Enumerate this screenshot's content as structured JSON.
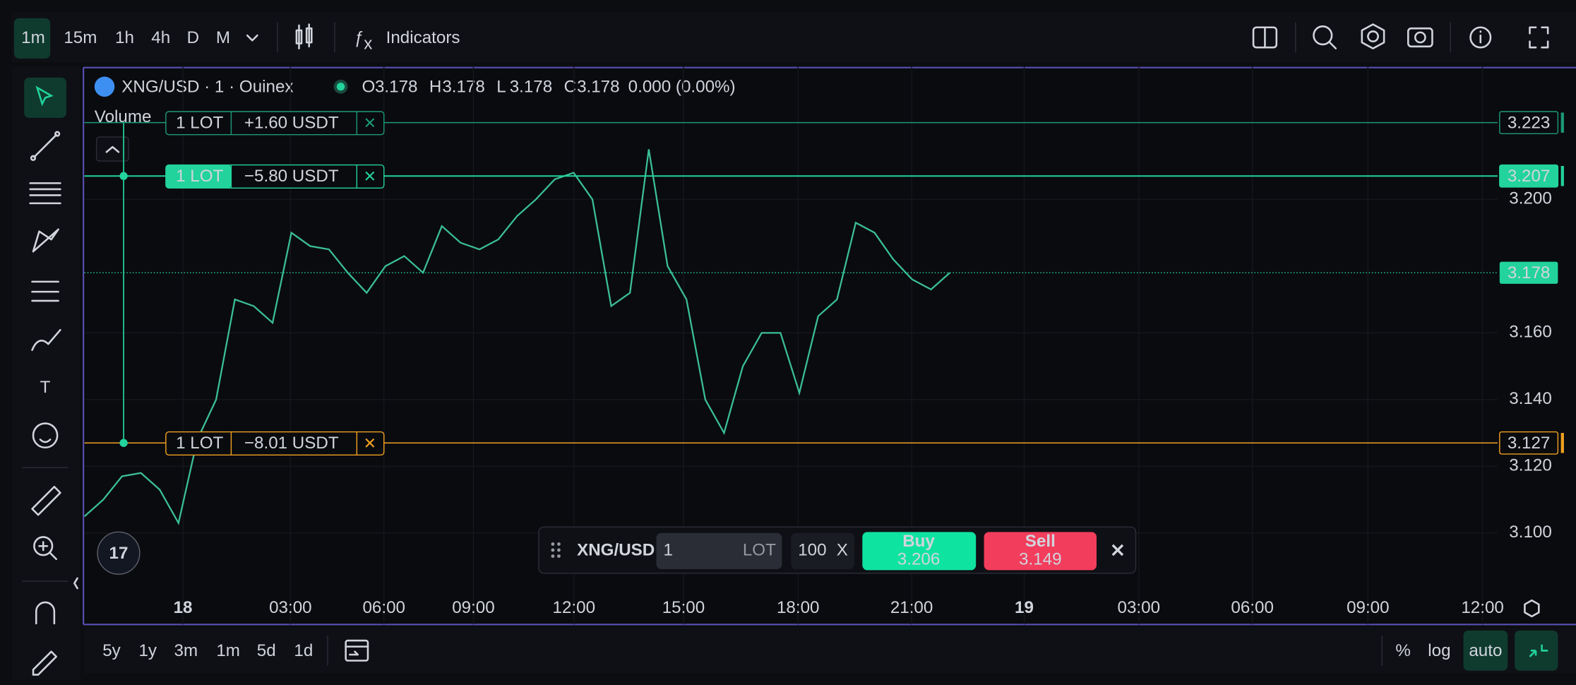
{
  "toolbar": {
    "intervals": [
      "1m",
      "15m",
      "1h",
      "4h",
      "D",
      "M"
    ],
    "indicators": "Indicators"
  },
  "legend": {
    "symbol": "XNG/USD · 1 · Ouinex",
    "ohlc": [
      {
        "label": "O",
        "value": "3.178"
      },
      {
        "label": "H",
        "value": "3.178"
      },
      {
        "label": "L",
        "value": "3.178"
      },
      {
        "label": "C",
        "value": "3.178"
      }
    ],
    "change": "0.000 (0.00%)",
    "volume": "Volume"
  },
  "chart": {
    "ylim": [
      3.0726,
      3.2398
    ],
    "yticks": [
      {
        "value": 3.1,
        "label": "3.100"
      },
      {
        "value": 3.12,
        "label": "3.120"
      },
      {
        "value": 3.14,
        "label": "3.140"
      },
      {
        "value": 3.16,
        "label": "3.160"
      },
      {
        "value": 3.2,
        "label": "3.200"
      }
    ],
    "time_axis": [
      "18",
      "03:00",
      "06:00",
      "09:00",
      "12:00",
      "15:00",
      "18:00",
      "21:00",
      "19",
      "03:00",
      "06:00",
      "09:00",
      "12:00"
    ],
    "price_line": {
      "color": "#3bbf94",
      "values": [
        3.105,
        3.11,
        3.117,
        3.118,
        3.113,
        3.103,
        3.128,
        3.14,
        3.17,
        3.168,
        3.163,
        3.19,
        3.186,
        3.185,
        3.178,
        3.172,
        3.18,
        3.183,
        3.178,
        3.192,
        3.187,
        3.185,
        3.188,
        3.195,
        3.2,
        3.206,
        3.208,
        3.2,
        3.168,
        3.172,
        3.215,
        3.18,
        3.17,
        3.14,
        3.13,
        3.15,
        3.16,
        3.16,
        3.142,
        3.165,
        3.17,
        3.193,
        3.19,
        3.182,
        3.176,
        3.173,
        3.178
      ]
    },
    "last_price": {
      "value": 3.178,
      "color": "#22d39b"
    },
    "orders": [
      {
        "lot": "1 LOT",
        "pnl": "+1.60 USDT",
        "price": 3.223,
        "color": "#1c9a78",
        "pnl_color": "#1c9a78",
        "active": false
      },
      {
        "lot": "1 LOT",
        "pnl": "−5.80 USDT",
        "price": 3.207,
        "color": "#22d39b",
        "pnl_color": "#f04a4a",
        "active": true
      },
      {
        "lot": "1 LOT",
        "pnl": "−8.01 USDT",
        "price": 3.127,
        "color": "#f0a020",
        "pnl_color": "#f0a020",
        "active": false
      }
    ]
  },
  "order_panel": {
    "symbol": "XNG/USD",
    "quantity": "1",
    "unit": "LOT",
    "leverage": "100",
    "leverage_unit": "X",
    "buy": {
      "label": "Buy",
      "price": "3.206"
    },
    "sell": {
      "label": "Sell",
      "price": "3.149"
    }
  },
  "ranges": [
    "5y",
    "1y",
    "3m",
    "1m",
    "5d",
    "1d"
  ],
  "scale_buttons": [
    "%",
    "log",
    "auto"
  ]
}
